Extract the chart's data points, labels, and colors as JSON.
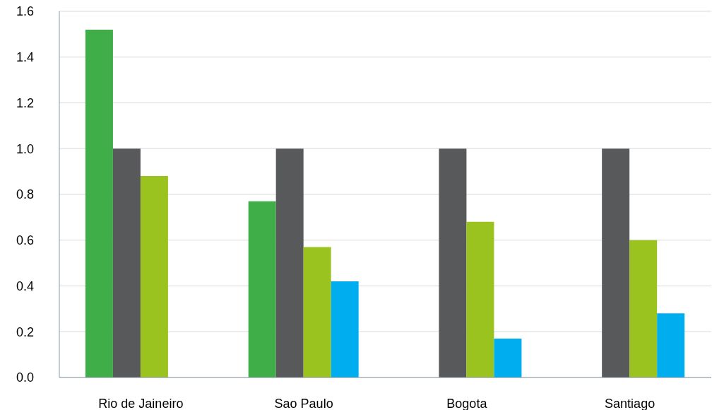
{
  "chart_data": {
    "type": "bar",
    "categories": [
      "Rio de Jaineiro",
      "Sao Paulo",
      "Bogota",
      "Santiago"
    ],
    "series": [
      {
        "color": "#3fae49",
        "values": [
          1.52,
          0.77,
          null,
          null
        ]
      },
      {
        "color": "#58595b",
        "values": [
          1.0,
          1.0,
          1.0,
          1.0
        ]
      },
      {
        "color": "#9bc31f",
        "values": [
          0.88,
          0.57,
          0.68,
          0.6
        ]
      },
      {
        "color": "#00aeef",
        "values": [
          null,
          0.42,
          0.17,
          0.28
        ]
      }
    ],
    "ylim": [
      0,
      1.6
    ],
    "yticks": [
      {
        "value": 0,
        "label": "0.0"
      },
      0.2,
      0.4,
      0.6,
      0.8,
      {
        "value": 1,
        "label": "1.0"
      },
      1.2,
      1.4,
      1.6
    ],
    "grid": "y",
    "legend": false
  }
}
